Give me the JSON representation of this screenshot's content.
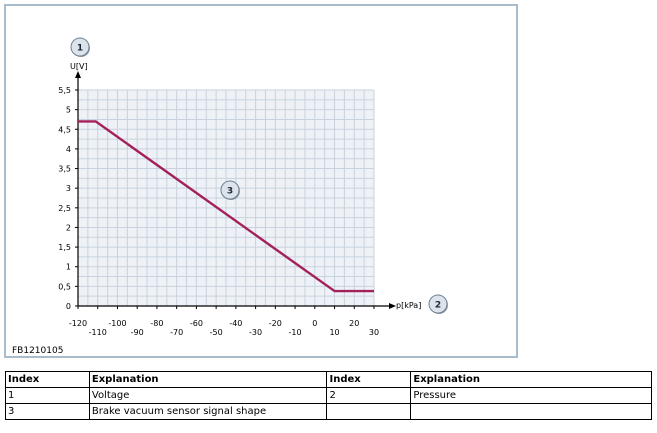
{
  "figure": {
    "code": "FB1210105",
    "callouts": [
      {
        "number": "1"
      },
      {
        "number": "2"
      },
      {
        "number": "3"
      }
    ]
  },
  "chart_data": {
    "type": "line",
    "xlabel": "p[kPa]",
    "ylabel": "U[V]",
    "xlim": [
      -120,
      30
    ],
    "ylim": [
      0,
      5.5
    ],
    "x_ticks_upper": [
      "-120",
      "-100",
      "-80",
      "-60",
      "-40",
      "-20",
      "0",
      "20"
    ],
    "x_ticks_upper_values": [
      -120,
      -100,
      -80,
      -60,
      -40,
      -20,
      0,
      20
    ],
    "x_ticks_lower": [
      "-110",
      "-90",
      "-70",
      "-50",
      "-30",
      "-10",
      "10",
      "30"
    ],
    "x_ticks_lower_values": [
      -110,
      -90,
      -70,
      -50,
      -30,
      -10,
      10,
      30
    ],
    "y_ticks": [
      "0",
      "0,5",
      "1",
      "1,5",
      "2",
      "2,5",
      "3",
      "3,5",
      "4",
      "4,5",
      "5",
      "5,5"
    ],
    "y_tick_values": [
      0,
      0.5,
      1,
      1.5,
      2,
      2.5,
      3,
      3.5,
      4,
      4.5,
      5,
      5.5
    ],
    "grid": true,
    "grid_color": "#c8d2de",
    "plot_background": "#eef2f6",
    "series": [
      {
        "color": "#a3205a",
        "x": [
          -120,
          -111,
          10,
          30
        ],
        "y": [
          4.7,
          4.7,
          0.38,
          0.38
        ]
      }
    ]
  },
  "table": {
    "headers": [
      "Index",
      "Explanation",
      "Index",
      "Explanation"
    ],
    "rows": [
      [
        "1",
        "Voltage",
        "2",
        "Pressure"
      ],
      [
        "3",
        "Brake vacuum sensor signal shape",
        "",
        ""
      ]
    ]
  }
}
